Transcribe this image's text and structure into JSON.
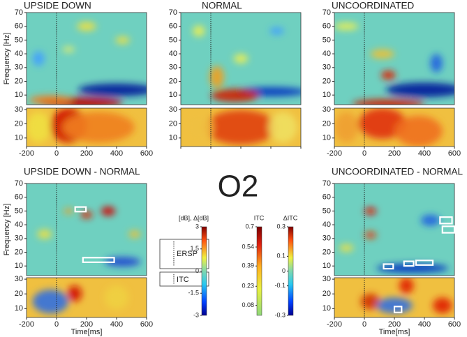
{
  "figure_label": "O2",
  "ylabel": "Frequency [Hz]",
  "xlabel": "Time[ms]",
  "xlim": [
    -200,
    600
  ],
  "xticks": [
    -200,
    0,
    200,
    400,
    600
  ],
  "ersp_ylim": [
    3,
    70
  ],
  "ersp_yticks": [
    10,
    20,
    30,
    40,
    50,
    60,
    70
  ],
  "itc_ylim": [
    4,
    31
  ],
  "itc_yticks": [
    10,
    20,
    30
  ],
  "panels": [
    {
      "title": "UPSIDE DOWN"
    },
    {
      "title": "NORMAL"
    },
    {
      "title": "UNCOORDINATED"
    },
    {
      "title": "UPSIDE DOWN - NORMAL"
    },
    {
      "title": "UNCOORDINATED - NORMAL"
    }
  ],
  "legend": {
    "ersp": "ERSP",
    "itc": "ITC"
  },
  "colorbars": [
    {
      "label": "[dB], Δ[dB]",
      "lim": [
        -3,
        3
      ],
      "ticks": [
        3,
        1.5,
        0,
        -1.5,
        -3
      ],
      "scheme": "jet"
    },
    {
      "label": "ITC",
      "lim": [
        0,
        0.7
      ],
      "ticks": [
        0.7,
        0.54,
        0.39,
        0.23,
        0.08
      ],
      "scheme": "itc"
    },
    {
      "label": "ΔITC",
      "lim": [
        -0.3,
        0.3
      ],
      "ticks": [
        0.3,
        0.1,
        0,
        -0.1,
        -0.3
      ],
      "scheme": "jet"
    }
  ]
}
